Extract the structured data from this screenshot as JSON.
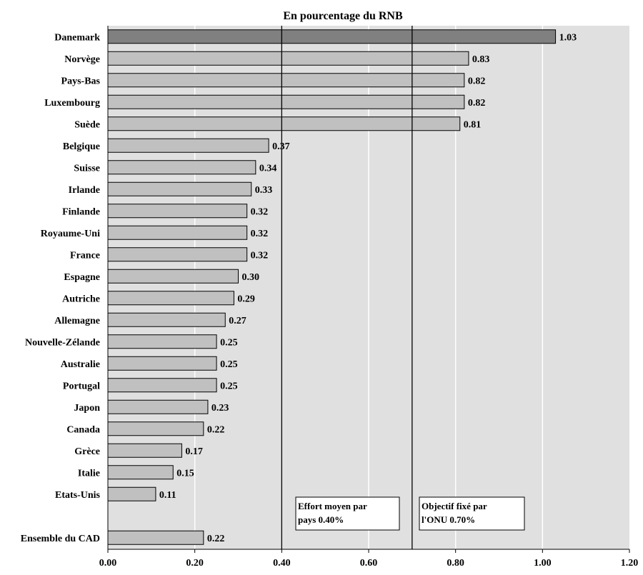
{
  "chart_data": {
    "type": "bar",
    "orientation": "horizontal",
    "title": "En pourcentage du RNB",
    "xlabel": "",
    "ylabel": "",
    "xlim": [
      0,
      1.2
    ],
    "x_ticks": [
      "0.00",
      "0.20",
      "0.40",
      "0.60",
      "0.80",
      "1.00",
      "1.20"
    ],
    "grid": true,
    "categories": [
      "Danemark",
      "Norvège",
      "Pays-Bas",
      "Luxembourg",
      "Suède",
      "Belgique",
      "Suisse",
      "Irlande",
      "Finlande",
      "Royaume-Uni",
      "France",
      "Espagne",
      "Autriche",
      "Allemagne",
      "Nouvelle-Zélande",
      "Australie",
      "Portugal",
      "Japon",
      "Canada",
      "Grèce",
      "Italie",
      "Etats-Unis",
      "",
      "Ensemble du CAD"
    ],
    "values": [
      1.03,
      0.83,
      0.82,
      0.82,
      0.81,
      0.37,
      0.34,
      0.33,
      0.32,
      0.32,
      0.32,
      0.3,
      0.29,
      0.27,
      0.25,
      0.25,
      0.25,
      0.23,
      0.22,
      0.17,
      0.15,
      0.11,
      null,
      0.22
    ],
    "value_labels": [
      "1.03",
      "0.83",
      "0.82",
      "0.82",
      "0.81",
      "0.37",
      "0.34",
      "0.33",
      "0.32",
      "0.32",
      "0.32",
      "0.30",
      "0.29",
      "0.27",
      "0.25",
      "0.25",
      "0.25",
      "0.23",
      "0.22",
      "0.17",
      "0.15",
      "0.11",
      "",
      "0.22"
    ],
    "highlight_index": 0,
    "colors": {
      "bar": "#c0c0c0",
      "highlight": "#808080",
      "plot_bg": "#e0e0e0",
      "grid": "#ffffff",
      "ref_line": "#000000"
    },
    "reference_lines": [
      {
        "value": 0.4,
        "label_lines": [
          "Effort moyen par",
          "pays 0.40%"
        ]
      },
      {
        "value": 0.7,
        "label_lines": [
          "Objectif fixé par",
          "l'ONU 0.70%"
        ]
      }
    ]
  }
}
